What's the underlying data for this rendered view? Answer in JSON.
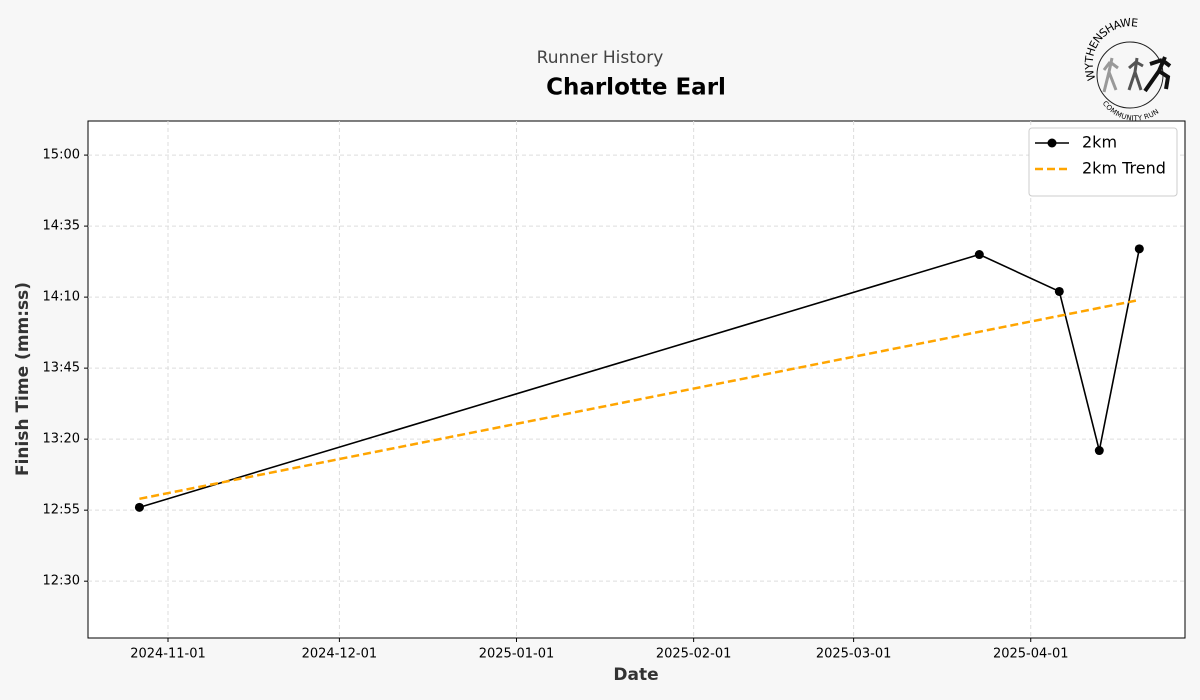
{
  "chart_data": {
    "type": "line",
    "subtitle": "Runner History",
    "title": "Charlotte Earl",
    "logo": {
      "top": "WYTHENSHAWE",
      "bottom": "COMMUNITY RUN"
    },
    "x_label": "Date",
    "y_label": "Finish Time (mm:ss)",
    "series": [
      {
        "name": "2km",
        "color": "#000000",
        "style": "solid",
        "markers": true,
        "x": [
          "2024-10-27",
          "2025-03-23",
          "2025-04-06",
          "2025-04-13",
          "2025-04-20"
        ],
        "values": [
          776,
          865,
          852,
          796,
          867
        ]
      },
      {
        "name": "2km Trend",
        "color": "#ffa500",
        "style": "dashed",
        "markers": false,
        "x": [
          "2024-10-27",
          "2025-04-20"
        ],
        "values": [
          779,
          849
        ]
      }
    ],
    "xlim": [
      "2024-10-18",
      "2025-04-28"
    ],
    "xticks": [
      "2024-11-01",
      "2024-12-01",
      "2025-01-01",
      "2025-02-01",
      "2025-03-01",
      "2025-04-01"
    ],
    "ylim": [
      730,
      912
    ],
    "yticks": [
      {
        "value": 750,
        "label": "12:30"
      },
      {
        "value": 775,
        "label": "12:55"
      },
      {
        "value": 800,
        "label": "13:20"
      },
      {
        "value": 825,
        "label": "13:45"
      },
      {
        "value": 850,
        "label": "14:10"
      },
      {
        "value": 875,
        "label": "14:35"
      },
      {
        "value": 900,
        "label": "15:00"
      }
    ],
    "grid": true,
    "legend": "upper-right"
  }
}
